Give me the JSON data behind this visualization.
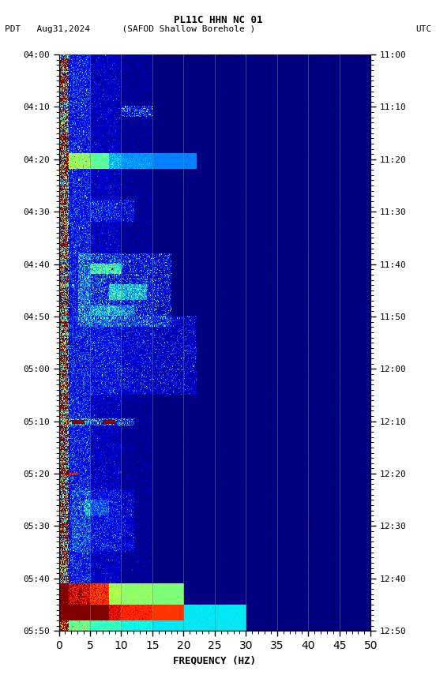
{
  "title_line1": "PL11C HHN NC 01",
  "title_line2_left": "PDT   Aug31,2024      (SAFOD Shallow Borehole )",
  "title_line2_right": "UTC",
  "xlabel": "FREQUENCY (HZ)",
  "freq_min": 0,
  "freq_max": 50,
  "ytick_pdt": [
    "04:00",
    "04:10",
    "04:20",
    "04:30",
    "04:40",
    "04:50",
    "05:00",
    "05:10",
    "05:20",
    "05:30",
    "05:40",
    "05:50"
  ],
  "ytick_utc": [
    "11:00",
    "11:10",
    "11:20",
    "11:30",
    "11:40",
    "11:50",
    "12:00",
    "12:10",
    "12:20",
    "12:30",
    "12:40",
    "12:50"
  ],
  "ytick_positions": [
    0,
    10,
    20,
    30,
    40,
    50,
    60,
    70,
    80,
    90,
    100,
    110
  ],
  "total_time_minutes": 110,
  "colormap": "jet",
  "seed": 42,
  "n_time": 660,
  "n_freq": 500,
  "vmin": 0.0,
  "vmax": 1.0
}
